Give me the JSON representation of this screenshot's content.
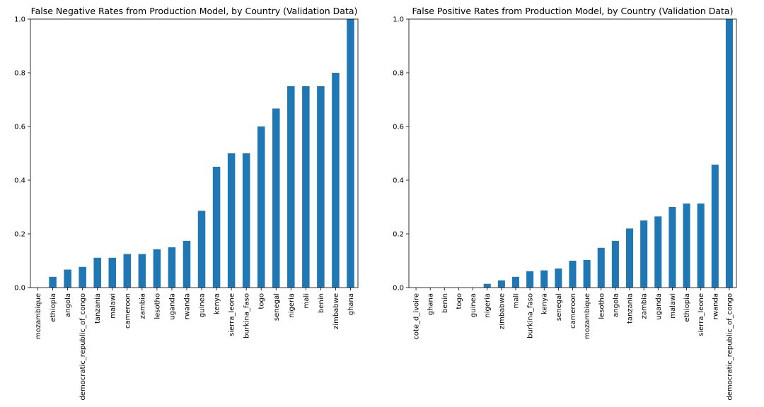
{
  "chart_data": [
    {
      "type": "bar",
      "title": "False Negative Rates from Production Model, by Country (Validation Data)",
      "xlabel": "",
      "ylabel": "",
      "ylim": [
        0,
        1.0
      ],
      "yticks": [
        "0.0",
        "0.2",
        "0.4",
        "0.6",
        "0.8",
        "1.0"
      ],
      "grid": false,
      "bar_color": "#1f77b4",
      "categories": [
        "mozambique",
        "ethiopia",
        "angola",
        "democratic_republic_of_congo",
        "tanzania",
        "malawi",
        "cameroon",
        "zambia",
        "lesotho",
        "uganda",
        "rwanda",
        "guinea",
        "kenya",
        "sierra_leone",
        "burkina_faso",
        "togo",
        "senegal",
        "nigeria",
        "mali",
        "benin",
        "zimbabwe",
        "ghana"
      ],
      "values": [
        0.0,
        0.04,
        0.067,
        0.077,
        0.111,
        0.111,
        0.125,
        0.125,
        0.143,
        0.15,
        0.174,
        0.286,
        0.45,
        0.5,
        0.5,
        0.6,
        0.667,
        0.75,
        0.75,
        0.75,
        0.8,
        1.0
      ]
    },
    {
      "type": "bar",
      "title": "False Positive Rates from Production Model, by Country (Validation Data)",
      "xlabel": "",
      "ylabel": "",
      "ylim": [
        0,
        1.0
      ],
      "yticks": [
        "0.0",
        "0.2",
        "0.4",
        "0.6",
        "0.8",
        "1.0"
      ],
      "grid": false,
      "bar_color": "#1f77b4",
      "categories": [
        "cote_d_ivoire",
        "ghana",
        "benin",
        "togo",
        "guinea",
        "nigeria",
        "zimbabwe",
        "mali",
        "burkina_faso",
        "kenya",
        "senegal",
        "cameroon",
        "mozambique",
        "lesotho",
        "angola",
        "tanzania",
        "zambia",
        "uganda",
        "malawi",
        "ethiopia",
        "sierra_leone",
        "rwanda",
        "democratic_republic_of_congo"
      ],
      "values": [
        0.0,
        0.0,
        0.0,
        0.0,
        0.0,
        0.014,
        0.027,
        0.04,
        0.061,
        0.064,
        0.071,
        0.1,
        0.103,
        0.148,
        0.174,
        0.22,
        0.25,
        0.265,
        0.3,
        0.313,
        0.313,
        0.458,
        1.0
      ]
    }
  ]
}
